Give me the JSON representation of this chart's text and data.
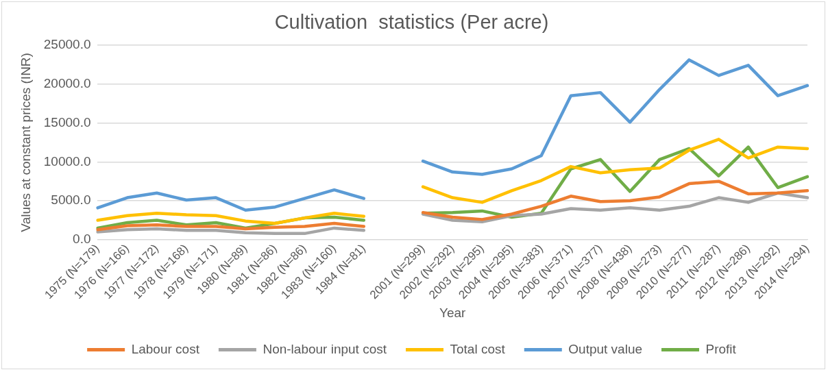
{
  "chart_data": {
    "type": "line",
    "title": "Cultivation  statistics (Per acre)",
    "xlabel": "Year",
    "ylabel": "Values at constant prices (INR)",
    "categories": [
      "1975 (N=179)",
      "1976 (N=166)",
      "1977 (N=172)",
      "1978 (N=168)",
      "1979 (N=171)",
      "1980 (N=89)",
      "1981 (N=86)",
      "1982 (N=86)",
      "1983 (N=160)",
      "1984 (N=81)",
      null,
      "2001 (N=299)",
      "2002 (N=292)",
      "2003 (N=295)",
      "2004 (N=295)",
      "2005 (N=383)",
      "2006 (N=371)",
      "2007 (N=377)",
      "2008 (N=438)",
      "2009 (N=273)",
      "2010 (N=277)",
      "2011 (N=287)",
      "2012 (N=286)",
      "2013 (N=292)",
      "2014 (N=294)"
    ],
    "series": [
      {
        "name": "Labour cost",
        "color": "#ed7d31",
        "values": [
          1300,
          1800,
          1900,
          1700,
          1700,
          1400,
          1600,
          1700,
          2100,
          1700,
          null,
          3500,
          2900,
          2600,
          3300,
          4300,
          5600,
          4900,
          5000,
          5500,
          7200,
          7500,
          5900,
          6000,
          6300
        ]
      },
      {
        "name": "Non-labour input cost",
        "color": "#a5a5a5",
        "values": [
          1000,
          1300,
          1400,
          1200,
          1200,
          900,
          800,
          800,
          1500,
          1200,
          null,
          3300,
          2500,
          2300,
          3100,
          3300,
          4000,
          3800,
          4100,
          3800,
          4300,
          5400,
          4800,
          6000,
          5400
        ]
      },
      {
        "name": "Total cost",
        "color": "#ffc000",
        "values": [
          2500,
          3100,
          3400,
          3200,
          3100,
          2400,
          2100,
          2800,
          3400,
          3000,
          null,
          6800,
          5400,
          4800,
          6300,
          7600,
          9400,
          8600,
          9000,
          9200,
          11500,
          12900,
          10500,
          11900,
          11700
        ]
      },
      {
        "name": "Output value",
        "color": "#5b9bd5",
        "values": [
          4100,
          5400,
          6000,
          5100,
          5400,
          3800,
          4200,
          5300,
          6400,
          5300,
          null,
          10100,
          8700,
          8400,
          9100,
          10800,
          18500,
          18900,
          15100,
          19300,
          23100,
          21100,
          22400,
          18500,
          19800
        ]
      },
      {
        "name": "Profit",
        "color": "#70ad47",
        "values": [
          1500,
          2200,
          2500,
          1900,
          2200,
          1500,
          2100,
          2800,
          2900,
          2500,
          null,
          3400,
          3500,
          3700,
          2900,
          3400,
          9100,
          10300,
          6200,
          10300,
          11700,
          8200,
          11900,
          6700,
          8100
        ]
      }
    ],
    "ylim": [
      0,
      25000
    ],
    "yticks": [
      {
        "value": 0,
        "label": "0.0"
      },
      {
        "value": 5000,
        "label": "5000.0"
      },
      {
        "value": 10000,
        "label": "10000.0"
      },
      {
        "value": 15000,
        "label": "15000.0"
      },
      {
        "value": 20000,
        "label": "20000.0"
      },
      {
        "value": 25000,
        "label": "25000.0"
      }
    ],
    "grid": "y",
    "legend": "bottom",
    "marker": "none",
    "line_style": "solid"
  }
}
